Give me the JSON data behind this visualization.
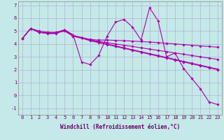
{
  "xlabel": "Windchill (Refroidissement éolien,°C)",
  "xlim": [
    -0.5,
    23.5
  ],
  "ylim": [
    -1.5,
    7.3
  ],
  "yticks": [
    -1,
    0,
    1,
    2,
    3,
    4,
    5,
    6,
    7
  ],
  "xticks": [
    0,
    1,
    2,
    3,
    4,
    5,
    6,
    7,
    8,
    9,
    10,
    11,
    12,
    13,
    14,
    15,
    16,
    17,
    18,
    19,
    20,
    21,
    22,
    23
  ],
  "background_color": "#c5e8e8",
  "line_color": "#aa00aa",
  "lines": [
    {
      "x": [
        0,
        1,
        2,
        3,
        4,
        5,
        6,
        7,
        8,
        9,
        10,
        11,
        12,
        13,
        14,
        15,
        16,
        17,
        18,
        19,
        20,
        21,
        22,
        23
      ],
      "y": [
        4.4,
        5.2,
        4.9,
        4.8,
        4.8,
        5.1,
        4.7,
        2.6,
        2.4,
        3.1,
        4.6,
        5.7,
        5.9,
        5.3,
        4.3,
        6.8,
        5.8,
        3.0,
        3.3,
        2.1,
        1.3,
        0.5,
        -0.5,
        -0.7
      ]
    },
    {
      "x": [
        0,
        1,
        2,
        3,
        4,
        5,
        6,
        7,
        8,
        9,
        10,
        11,
        12,
        13,
        14,
        15,
        16,
        17,
        18,
        19,
        20,
        21,
        22,
        23
      ],
      "y": [
        4.4,
        5.2,
        4.9,
        4.85,
        4.85,
        5.05,
        4.65,
        4.5,
        4.35,
        4.3,
        4.3,
        4.28,
        4.25,
        4.22,
        4.18,
        4.15,
        4.1,
        4.05,
        4.0,
        3.95,
        3.9,
        3.85,
        3.8,
        3.75
      ]
    },
    {
      "x": [
        0,
        1,
        2,
        3,
        4,
        5,
        6,
        7,
        8,
        9,
        10,
        11,
        12,
        13,
        14,
        15,
        16,
        17,
        18,
        19,
        20,
        21,
        22,
        23
      ],
      "y": [
        4.4,
        5.2,
        4.9,
        4.85,
        4.85,
        5.05,
        4.6,
        4.45,
        4.3,
        4.2,
        4.1,
        4.0,
        3.9,
        3.8,
        3.7,
        3.6,
        3.5,
        3.4,
        3.3,
        3.2,
        3.1,
        3.0,
        2.9,
        2.8
      ]
    },
    {
      "x": [
        0,
        1,
        2,
        3,
        4,
        5,
        6,
        7,
        8,
        9,
        10,
        11,
        12,
        13,
        14,
        15,
        16,
        17,
        18,
        19,
        20,
        21,
        22,
        23
      ],
      "y": [
        4.4,
        5.2,
        4.9,
        4.85,
        4.85,
        5.0,
        4.6,
        4.45,
        4.25,
        4.1,
        3.95,
        3.8,
        3.65,
        3.5,
        3.35,
        3.2,
        3.05,
        2.9,
        2.75,
        2.6,
        2.45,
        2.3,
        2.15,
        2.0
      ]
    },
    {
      "x": [
        0,
        1,
        2,
        3,
        4,
        5,
        6,
        7,
        8,
        9,
        10,
        11,
        12,
        13,
        14,
        15,
        16,
        17,
        18,
        19,
        20,
        21,
        22,
        23
      ],
      "y": [
        4.4,
        5.2,
        5.0,
        4.9,
        4.9,
        5.1,
        4.65,
        4.5,
        4.3,
        4.15,
        4.0,
        3.85,
        3.7,
        3.55,
        3.4,
        3.25,
        3.1,
        2.95,
        2.8,
        2.65,
        2.5,
        2.35,
        2.2,
        2.05
      ]
    }
  ],
  "grid_color": "#aaaacc",
  "marker": "D",
  "markersize": 1.8,
  "linewidth": 0.8,
  "tick_fontsize": 5.0,
  "xlabel_fontsize": 5.5
}
